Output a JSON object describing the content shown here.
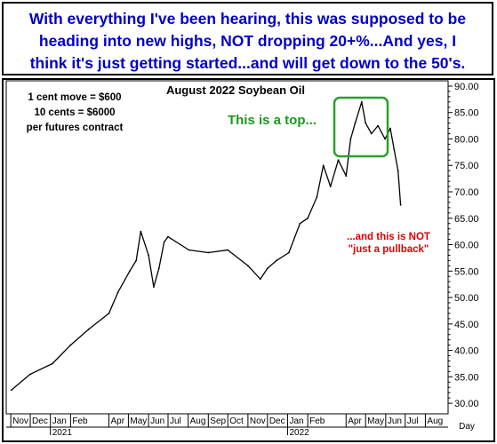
{
  "banner": {
    "line1": "With everything I've been hearing, this was supposed to be",
    "line2": "heading into new highs, NOT dropping 20+%...And yes,  I",
    "line3": "think it's just getting started...and will get down to the 50's."
  },
  "info_box": {
    "line1": "1 cent move = $600",
    "line2": "10 cents = $6000",
    "line3": "per futures contract"
  },
  "annotations": {
    "top": "This is a top...",
    "pullback_line1": "...and this is NOT",
    "pullback_line2": "\"just a pullback\""
  },
  "colors": {
    "series": "#000000",
    "banner_text": "#0000c8",
    "top_annotation": "#1a9a1a",
    "top_box": "#2aa02a",
    "pullback_annotation": "#e00000"
  },
  "chart_data": {
    "type": "line",
    "title": "August 2022 Soybean Oil",
    "xlabel": "Day",
    "ylabel": "",
    "ylim": [
      28.0,
      91.0
    ],
    "grid": false,
    "y_ticks": [
      "30.00",
      "35.00",
      "40.00",
      "45.00",
      "50.00",
      "55.00",
      "60.00",
      "65.00",
      "70.00",
      "75.00",
      "80.00",
      "85.00",
      "90.00"
    ],
    "x_month_labels": [
      "Nov",
      "Dec",
      "Jan",
      "Feb",
      "Apr",
      "May",
      "Jun",
      "Jul",
      "Aug",
      "Sep",
      "Oct",
      "Nov",
      "Dec",
      "Jan",
      "Feb",
      "Apr",
      "May",
      "Jun",
      "Jul",
      "Aug"
    ],
    "x_year_labels": [
      "2021",
      "2022"
    ],
    "series": [
      {
        "x": [
          "2020-11-02",
          "2020-12-01",
          "2021-01-04",
          "2021-02-01",
          "2021-03-01",
          "2021-04-01",
          "2021-04-15",
          "2021-05-03",
          "2021-05-13",
          "2021-05-20",
          "2021-06-01",
          "2021-06-09",
          "2021-06-17",
          "2021-06-25",
          "2021-07-01",
          "2021-08-02",
          "2021-09-01",
          "2021-10-01",
          "2021-11-01",
          "2021-11-20",
          "2021-12-01",
          "2021-12-15",
          "2022-01-03",
          "2022-01-20",
          "2022-02-01",
          "2022-02-15",
          "2022-02-25",
          "2022-03-08",
          "2022-03-20",
          "2022-04-01",
          "2022-04-08",
          "2022-04-15",
          "2022-04-25",
          "2022-05-01",
          "2022-05-10",
          "2022-05-20",
          "2022-05-31",
          "2022-06-08",
          "2022-06-14",
          "2022-06-20",
          "2022-06-24"
        ],
        "values": [
          32.5,
          35.5,
          37.5,
          41.0,
          44.0,
          47.0,
          51.0,
          55.0,
          57.0,
          62.5,
          58.0,
          52.0,
          55.5,
          60.5,
          61.5,
          59.0,
          58.5,
          59.0,
          56.0,
          53.5,
          55.5,
          57.0,
          58.5,
          64.0,
          65.0,
          69.0,
          75.0,
          71.0,
          76.0,
          73.0,
          80.0,
          83.0,
          87.0,
          83.0,
          81.0,
          82.5,
          80.0,
          82.0,
          78.0,
          74.0,
          67.5
        ]
      }
    ]
  }
}
